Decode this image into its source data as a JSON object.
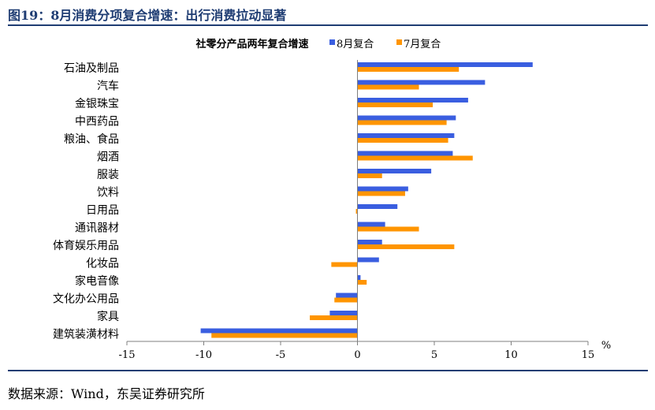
{
  "figure": {
    "title": "图19：8月消费分项复合增速：出行消费拉动显著",
    "source": "数据来源：Wind，东吴证券研究所"
  },
  "colors": {
    "series_1": "#3a5ee0",
    "series_2": "#ff9500",
    "axis": "#7f7f7f"
  },
  "chart_data": {
    "type": "bar",
    "orientation": "horizontal",
    "title": "社零分产品两年复合增速",
    "xlabel": "%",
    "ylabel": "",
    "xlim": [
      -15,
      15
    ],
    "xticks": [
      -15,
      -10,
      -5,
      0,
      5,
      10,
      15
    ],
    "legend_position": "top",
    "grid": false,
    "categories": [
      "石油及制品",
      "汽车",
      "金银珠宝",
      "中西药品",
      "粮油、食品",
      "烟酒",
      "服装",
      "饮料",
      "日用品",
      "通讯器材",
      "体育娱乐用品",
      "化妆品",
      "家电音像",
      "文化办公用品",
      "家具",
      "建筑装潢材料"
    ],
    "series": [
      {
        "name": "8月复合",
        "values": [
          11.4,
          8.3,
          7.2,
          6.4,
          6.3,
          6.2,
          4.8,
          3.3,
          2.6,
          1.8,
          1.6,
          1.4,
          0.2,
          -1.4,
          -1.8,
          -10.2
        ]
      },
      {
        "name": "7月复合",
        "values": [
          6.6,
          4.0,
          4.9,
          5.8,
          5.9,
          7.5,
          1.6,
          3.1,
          -0.1,
          4.0,
          6.3,
          -1.7,
          0.6,
          -1.5,
          -3.1,
          -9.5
        ]
      }
    ]
  }
}
